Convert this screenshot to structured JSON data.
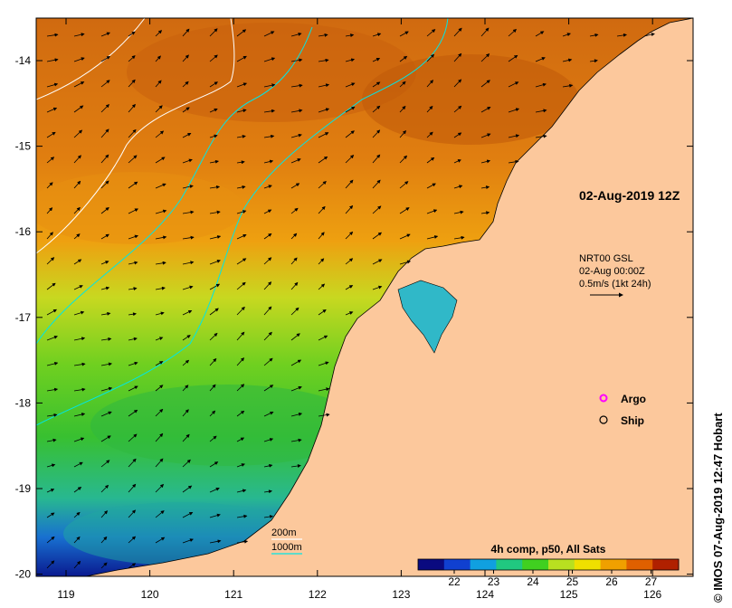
{
  "map": {
    "date_title": "02-Aug-2019 12Z",
    "x_ticks": [
      "119",
      "120",
      "121",
      "122",
      "123",
      "124",
      "125",
      "126"
    ],
    "y_ticks": [
      "-14",
      "-15",
      "-16",
      "-17",
      "-18",
      "-19",
      "-20"
    ],
    "current_legend": {
      "line1": "NRT00 GSL",
      "line2": "02-Aug 00:00Z",
      "line3": "0.5m/s (1kt 24h)"
    },
    "markers": {
      "argo_label": "Argo",
      "argo_color": "#ff00ff",
      "ship_label": "Ship"
    },
    "isobaths": {
      "shallow_label": "200m",
      "shallow_color": "#ffffff",
      "deep_label": "1000m",
      "deep_color": "#00e6e6"
    },
    "colorbar": {
      "title": "4h comp, p50, All Sats",
      "ticks": [
        "22",
        "23",
        "24",
        "25",
        "26",
        "27"
      ],
      "colors": [
        "#0a0a80",
        "#1040d0",
        "#10a0e0",
        "#20c880",
        "#40d020",
        "#b8e020",
        "#f0e000",
        "#f0a000",
        "#e06000",
        "#b02000"
      ]
    },
    "land_color": "#fcc89c",
    "credit": "© IMOS 07-Aug-2019 12:47 Hobart"
  }
}
